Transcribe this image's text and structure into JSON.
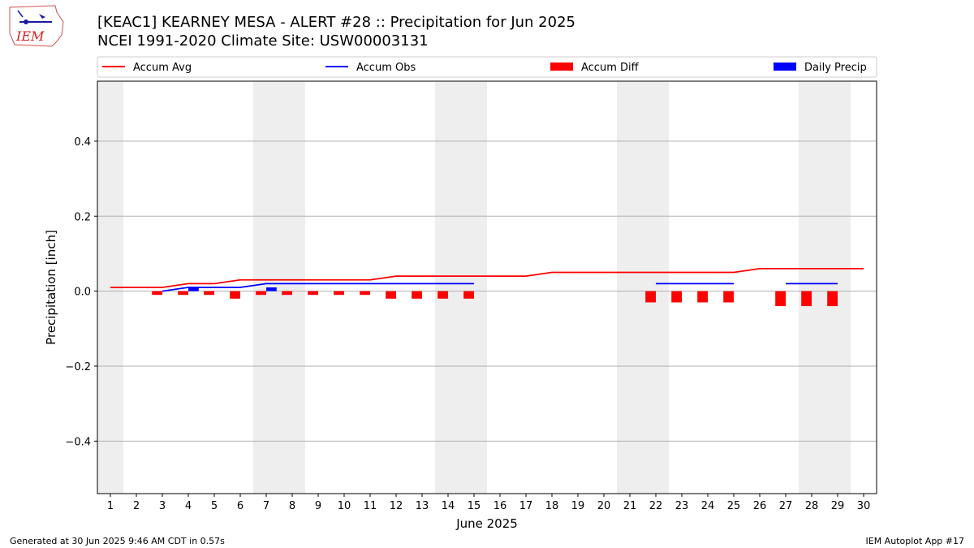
{
  "header": {
    "title_line1": "[KEAC1] KEARNEY MESA - ALERT #28 :: Precipitation for Jun 2025",
    "title_line2": "NCEI 1991-2020 Climate Site: USW00003131",
    "logo_text": "IEM"
  },
  "footer": {
    "generated": "Generated at 30 Jun 2025 9:46 AM CDT in 0.57s",
    "app": "IEM Autoplot App #17"
  },
  "colors": {
    "accum_avg": "#ff0000",
    "accum_obs": "#0000ff",
    "accum_diff": "#ff0000",
    "daily_precip": "#0000ff",
    "weekend_shade": "#eeeeee",
    "grid": "#b0b0b0"
  },
  "chart_data": {
    "type": "line",
    "title": "[KEAC1] KEARNEY MESA - ALERT #28 :: Precipitation for Jun 2025",
    "xlabel": "June 2025",
    "ylabel": "Precipitation [inch]",
    "xlim": [
      0.5,
      30.5
    ],
    "ylim": [
      -0.54,
      0.56
    ],
    "grid": "y",
    "legend_position": "top",
    "x_ticks": [
      1,
      2,
      3,
      4,
      5,
      6,
      7,
      8,
      9,
      10,
      11,
      12,
      13,
      14,
      15,
      16,
      17,
      18,
      19,
      20,
      21,
      22,
      23,
      24,
      25,
      26,
      27,
      28,
      29,
      30
    ],
    "x_tick_labels": [
      "1",
      "2",
      "3",
      "4",
      "5",
      "6",
      "7",
      "8",
      "9",
      "10",
      "11",
      "12",
      "13",
      "14",
      "15",
      "16",
      "17",
      "18",
      "19",
      "20",
      "21",
      "22",
      "23",
      "24",
      "25",
      "26",
      "27",
      "28",
      "29",
      "30"
    ],
    "y_ticks": [
      -0.4,
      -0.2,
      0.0,
      0.2,
      0.4
    ],
    "y_tick_labels": [
      "−0.4",
      "−0.2",
      "0.0",
      "0.2",
      "0.4"
    ],
    "weekend_days": [
      1,
      7,
      8,
      14,
      15,
      21,
      22,
      28,
      29
    ],
    "days": [
      1,
      2,
      3,
      4,
      5,
      6,
      7,
      8,
      9,
      10,
      11,
      12,
      13,
      14,
      15,
      16,
      17,
      18,
      19,
      20,
      21,
      22,
      23,
      24,
      25,
      26,
      27,
      28,
      29,
      30
    ],
    "series": [
      {
        "name": "Accum Avg",
        "kind": "line",
        "values": [
          0.01,
          0.01,
          0.01,
          0.02,
          0.02,
          0.03,
          0.03,
          0.03,
          0.03,
          0.03,
          0.03,
          0.04,
          0.04,
          0.04,
          0.04,
          0.04,
          0.04,
          0.05,
          0.05,
          0.05,
          0.05,
          0.05,
          0.05,
          0.05,
          0.05,
          0.06,
          0.06,
          0.06,
          0.06,
          0.06
        ]
      },
      {
        "name": "Accum Obs",
        "kind": "line",
        "segments": [
          {
            "days": [
              3,
              4,
              5,
              6,
              7,
              8,
              9,
              10,
              11,
              12,
              13,
              14,
              15
            ],
            "values": [
              0.0,
              0.01,
              0.01,
              0.01,
              0.02,
              0.02,
              0.02,
              0.02,
              0.02,
              0.02,
              0.02,
              0.02,
              0.02
            ]
          },
          {
            "days": [
              22,
              23,
              24,
              25
            ],
            "values": [
              0.02,
              0.02,
              0.02,
              0.02
            ]
          },
          {
            "days": [
              27,
              28,
              29
            ],
            "values": [
              0.02,
              0.02,
              0.02
            ]
          }
        ]
      },
      {
        "name": "Accum Diff",
        "kind": "bar",
        "days": [
          3,
          4,
          5,
          6,
          7,
          8,
          9,
          10,
          11,
          12,
          13,
          14,
          15,
          22,
          23,
          24,
          25,
          27,
          28,
          29
        ],
        "values": [
          -0.01,
          -0.01,
          -0.01,
          -0.02,
          -0.01,
          -0.01,
          -0.01,
          -0.01,
          -0.01,
          -0.02,
          -0.02,
          -0.02,
          -0.02,
          -0.03,
          -0.03,
          -0.03,
          -0.03,
          -0.04,
          -0.04,
          -0.04
        ]
      },
      {
        "name": "Daily Precip",
        "kind": "bar",
        "days": [
          4,
          7
        ],
        "values": [
          0.01,
          0.01
        ]
      }
    ]
  }
}
